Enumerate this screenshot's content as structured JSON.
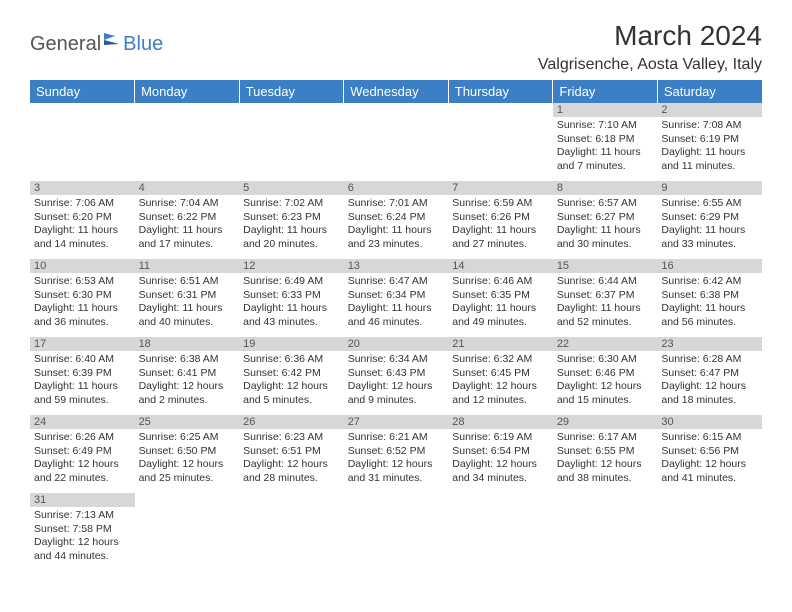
{
  "header": {
    "logo_general": "General",
    "logo_blue": "Blue",
    "month_title": "March 2024",
    "location": "Valgrisenche, Aosta Valley, Italy"
  },
  "colors": {
    "header_bg": "#3b7fc4",
    "header_text": "#ffffff",
    "daybar_bg": "#d7d7d7",
    "text": "#333333"
  },
  "weekdays": [
    "Sunday",
    "Monday",
    "Tuesday",
    "Wednesday",
    "Thursday",
    "Friday",
    "Saturday"
  ],
  "weeks": [
    [
      null,
      null,
      null,
      null,
      null,
      {
        "day": "1",
        "sunrise": "Sunrise: 7:10 AM",
        "sunset": "Sunset: 6:18 PM",
        "daylight1": "Daylight: 11 hours",
        "daylight2": "and 7 minutes."
      },
      {
        "day": "2",
        "sunrise": "Sunrise: 7:08 AM",
        "sunset": "Sunset: 6:19 PM",
        "daylight1": "Daylight: 11 hours",
        "daylight2": "and 11 minutes."
      }
    ],
    [
      {
        "day": "3",
        "sunrise": "Sunrise: 7:06 AM",
        "sunset": "Sunset: 6:20 PM",
        "daylight1": "Daylight: 11 hours",
        "daylight2": "and 14 minutes."
      },
      {
        "day": "4",
        "sunrise": "Sunrise: 7:04 AM",
        "sunset": "Sunset: 6:22 PM",
        "daylight1": "Daylight: 11 hours",
        "daylight2": "and 17 minutes."
      },
      {
        "day": "5",
        "sunrise": "Sunrise: 7:02 AM",
        "sunset": "Sunset: 6:23 PM",
        "daylight1": "Daylight: 11 hours",
        "daylight2": "and 20 minutes."
      },
      {
        "day": "6",
        "sunrise": "Sunrise: 7:01 AM",
        "sunset": "Sunset: 6:24 PM",
        "daylight1": "Daylight: 11 hours",
        "daylight2": "and 23 minutes."
      },
      {
        "day": "7",
        "sunrise": "Sunrise: 6:59 AM",
        "sunset": "Sunset: 6:26 PM",
        "daylight1": "Daylight: 11 hours",
        "daylight2": "and 27 minutes."
      },
      {
        "day": "8",
        "sunrise": "Sunrise: 6:57 AM",
        "sunset": "Sunset: 6:27 PM",
        "daylight1": "Daylight: 11 hours",
        "daylight2": "and 30 minutes."
      },
      {
        "day": "9",
        "sunrise": "Sunrise: 6:55 AM",
        "sunset": "Sunset: 6:29 PM",
        "daylight1": "Daylight: 11 hours",
        "daylight2": "and 33 minutes."
      }
    ],
    [
      {
        "day": "10",
        "sunrise": "Sunrise: 6:53 AM",
        "sunset": "Sunset: 6:30 PM",
        "daylight1": "Daylight: 11 hours",
        "daylight2": "and 36 minutes."
      },
      {
        "day": "11",
        "sunrise": "Sunrise: 6:51 AM",
        "sunset": "Sunset: 6:31 PM",
        "daylight1": "Daylight: 11 hours",
        "daylight2": "and 40 minutes."
      },
      {
        "day": "12",
        "sunrise": "Sunrise: 6:49 AM",
        "sunset": "Sunset: 6:33 PM",
        "daylight1": "Daylight: 11 hours",
        "daylight2": "and 43 minutes."
      },
      {
        "day": "13",
        "sunrise": "Sunrise: 6:47 AM",
        "sunset": "Sunset: 6:34 PM",
        "daylight1": "Daylight: 11 hours",
        "daylight2": "and 46 minutes."
      },
      {
        "day": "14",
        "sunrise": "Sunrise: 6:46 AM",
        "sunset": "Sunset: 6:35 PM",
        "daylight1": "Daylight: 11 hours",
        "daylight2": "and 49 minutes."
      },
      {
        "day": "15",
        "sunrise": "Sunrise: 6:44 AM",
        "sunset": "Sunset: 6:37 PM",
        "daylight1": "Daylight: 11 hours",
        "daylight2": "and 52 minutes."
      },
      {
        "day": "16",
        "sunrise": "Sunrise: 6:42 AM",
        "sunset": "Sunset: 6:38 PM",
        "daylight1": "Daylight: 11 hours",
        "daylight2": "and 56 minutes."
      }
    ],
    [
      {
        "day": "17",
        "sunrise": "Sunrise: 6:40 AM",
        "sunset": "Sunset: 6:39 PM",
        "daylight1": "Daylight: 11 hours",
        "daylight2": "and 59 minutes."
      },
      {
        "day": "18",
        "sunrise": "Sunrise: 6:38 AM",
        "sunset": "Sunset: 6:41 PM",
        "daylight1": "Daylight: 12 hours",
        "daylight2": "and 2 minutes."
      },
      {
        "day": "19",
        "sunrise": "Sunrise: 6:36 AM",
        "sunset": "Sunset: 6:42 PM",
        "daylight1": "Daylight: 12 hours",
        "daylight2": "and 5 minutes."
      },
      {
        "day": "20",
        "sunrise": "Sunrise: 6:34 AM",
        "sunset": "Sunset: 6:43 PM",
        "daylight1": "Daylight: 12 hours",
        "daylight2": "and 9 minutes."
      },
      {
        "day": "21",
        "sunrise": "Sunrise: 6:32 AM",
        "sunset": "Sunset: 6:45 PM",
        "daylight1": "Daylight: 12 hours",
        "daylight2": "and 12 minutes."
      },
      {
        "day": "22",
        "sunrise": "Sunrise: 6:30 AM",
        "sunset": "Sunset: 6:46 PM",
        "daylight1": "Daylight: 12 hours",
        "daylight2": "and 15 minutes."
      },
      {
        "day": "23",
        "sunrise": "Sunrise: 6:28 AM",
        "sunset": "Sunset: 6:47 PM",
        "daylight1": "Daylight: 12 hours",
        "daylight2": "and 18 minutes."
      }
    ],
    [
      {
        "day": "24",
        "sunrise": "Sunrise: 6:26 AM",
        "sunset": "Sunset: 6:49 PM",
        "daylight1": "Daylight: 12 hours",
        "daylight2": "and 22 minutes."
      },
      {
        "day": "25",
        "sunrise": "Sunrise: 6:25 AM",
        "sunset": "Sunset: 6:50 PM",
        "daylight1": "Daylight: 12 hours",
        "daylight2": "and 25 minutes."
      },
      {
        "day": "26",
        "sunrise": "Sunrise: 6:23 AM",
        "sunset": "Sunset: 6:51 PM",
        "daylight1": "Daylight: 12 hours",
        "daylight2": "and 28 minutes."
      },
      {
        "day": "27",
        "sunrise": "Sunrise: 6:21 AM",
        "sunset": "Sunset: 6:52 PM",
        "daylight1": "Daylight: 12 hours",
        "daylight2": "and 31 minutes."
      },
      {
        "day": "28",
        "sunrise": "Sunrise: 6:19 AM",
        "sunset": "Sunset: 6:54 PM",
        "daylight1": "Daylight: 12 hours",
        "daylight2": "and 34 minutes."
      },
      {
        "day": "29",
        "sunrise": "Sunrise: 6:17 AM",
        "sunset": "Sunset: 6:55 PM",
        "daylight1": "Daylight: 12 hours",
        "daylight2": "and 38 minutes."
      },
      {
        "day": "30",
        "sunrise": "Sunrise: 6:15 AM",
        "sunset": "Sunset: 6:56 PM",
        "daylight1": "Daylight: 12 hours",
        "daylight2": "and 41 minutes."
      }
    ],
    [
      {
        "day": "31",
        "sunrise": "Sunrise: 7:13 AM",
        "sunset": "Sunset: 7:58 PM",
        "daylight1": "Daylight: 12 hours",
        "daylight2": "and 44 minutes."
      },
      null,
      null,
      null,
      null,
      null,
      null
    ]
  ]
}
